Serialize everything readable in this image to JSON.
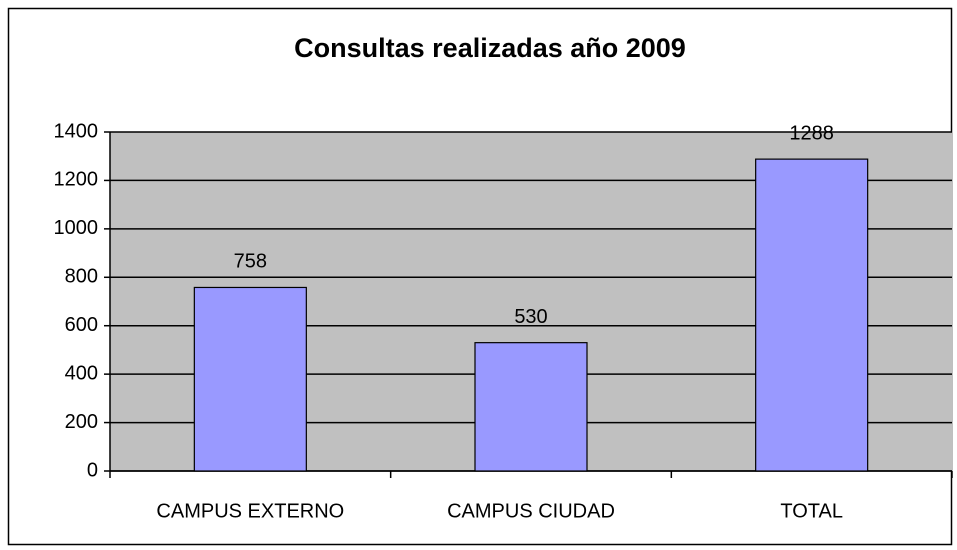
{
  "chart_data": {
    "type": "bar",
    "title": "Consultas realizadas año 2009",
    "categories": [
      "CAMPUS EXTERNO",
      "CAMPUS CIUDAD",
      "TOTAL"
    ],
    "values": [
      758,
      530,
      1288
    ],
    "color": "#9999ff",
    "ylim": [
      0,
      1400
    ],
    "yticks": [
      0,
      200,
      400,
      600,
      800,
      1000,
      1200,
      1400
    ],
    "grid": true
  }
}
